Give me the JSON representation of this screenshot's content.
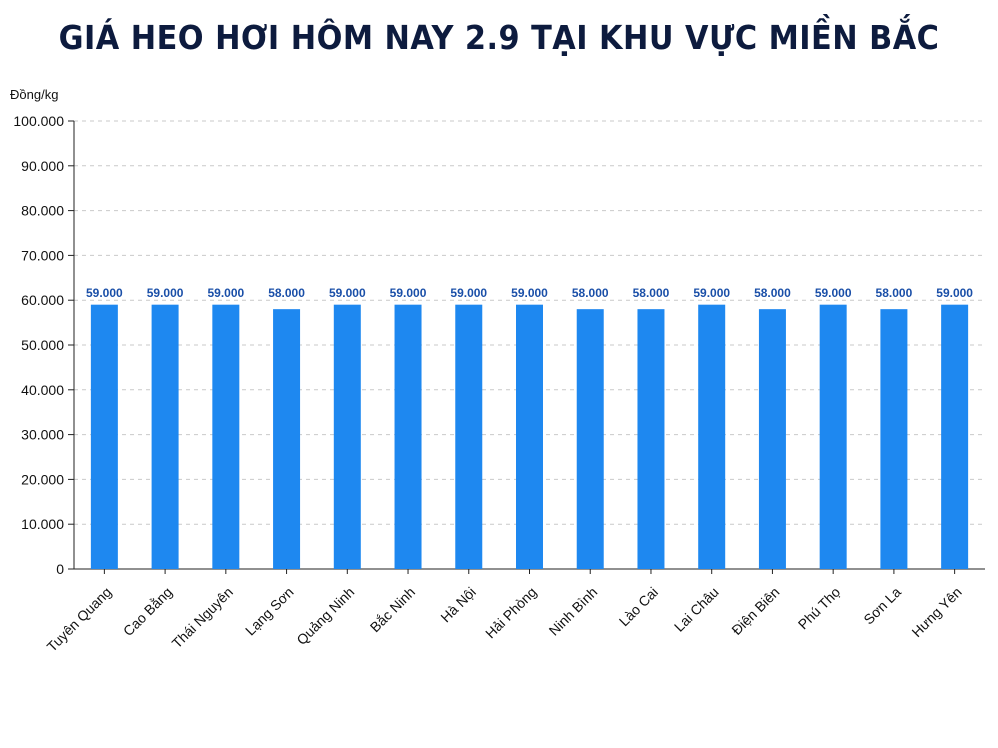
{
  "chart_data": {
    "type": "bar",
    "title": "GIÁ HEO HƠI HÔM NAY 2.9 TẠI KHU VỰC MIỀN BẮC",
    "ylabel": "Đồng/kg",
    "xlabel": "",
    "ylim": [
      0,
      100000
    ],
    "yticks": [
      0,
      10000,
      20000,
      30000,
      40000,
      50000,
      60000,
      70000,
      80000,
      90000,
      100000
    ],
    "ytick_labels": [
      "0",
      "10.000",
      "20.000",
      "30.000",
      "40.000",
      "50.000",
      "60.000",
      "70.000",
      "80.000",
      "90.000",
      "100.000"
    ],
    "grid": true,
    "bar_color": "#1e88f0",
    "categories": [
      "Tuyên Quang",
      "Cao Bằng",
      "Thái Nguyên",
      "Lạng Sơn",
      "Quảng Ninh",
      "Bắc Ninh",
      "Hà Nội",
      "Hải Phòng",
      "Ninh Bình",
      "Lào Cai",
      "Lai Châu",
      "Điện Biên",
      "Phú Thọ",
      "Sơn La",
      "Hưng Yên"
    ],
    "values": [
      59000,
      59000,
      59000,
      58000,
      59000,
      59000,
      59000,
      59000,
      58000,
      58000,
      59000,
      58000,
      59000,
      58000,
      59000
    ],
    "value_labels": [
      "59.000",
      "59.000",
      "59.000",
      "58.000",
      "59.000",
      "59.000",
      "59.000",
      "59.000",
      "58.000",
      "58.000",
      "59.000",
      "58.000",
      "59.000",
      "58.000",
      "59.000"
    ]
  }
}
